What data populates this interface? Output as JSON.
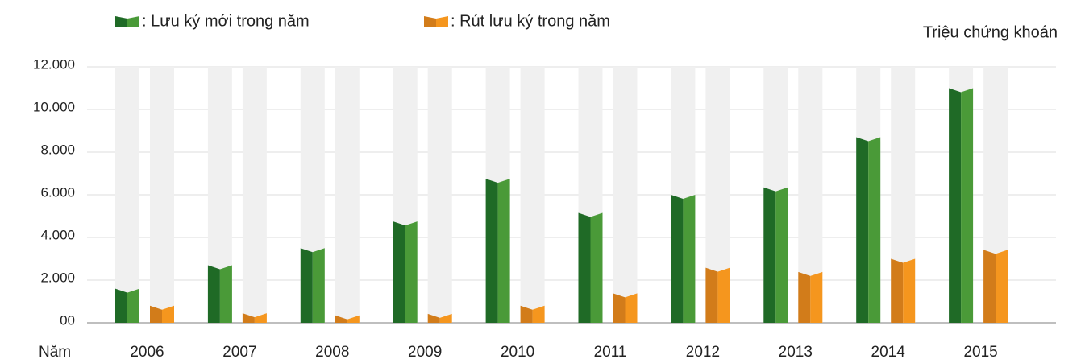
{
  "chart_data": {
    "type": "bar",
    "unit_label": "Triệu chứng khoán",
    "x_label": "Năm",
    "categories": [
      "2006",
      "2007",
      "2008",
      "2009",
      "2010",
      "2011",
      "2012",
      "2013",
      "2014",
      "2015"
    ],
    "series": [
      {
        "name": ": Lưu ký mới trong năm",
        "color": "#4a9a38",
        "shade": "#1f6a26",
        "values": [
          1600,
          2700,
          3500,
          4750,
          6750,
          5150,
          6000,
          6350,
          8700,
          11000
        ]
      },
      {
        "name": ": Rút lưu ký trong năm",
        "color": "#f5961e",
        "shade": "#d27c1a",
        "values": [
          800,
          450,
          350,
          420,
          800,
          1380,
          2580,
          2380,
          3000,
          3420
        ]
      }
    ],
    "ylim": [
      0,
      12000
    ],
    "yticks": [
      {
        "value": 0,
        "label": "00"
      },
      {
        "value": 2000,
        "label": "2.000"
      },
      {
        "value": 4000,
        "label": "4.000"
      },
      {
        "value": 6000,
        "label": "6.000"
      },
      {
        "value": 8000,
        "label": "8.000"
      },
      {
        "value": 10000,
        "label": "10.000"
      },
      {
        "value": 12000,
        "label": "12.000"
      }
    ],
    "grid": true
  }
}
